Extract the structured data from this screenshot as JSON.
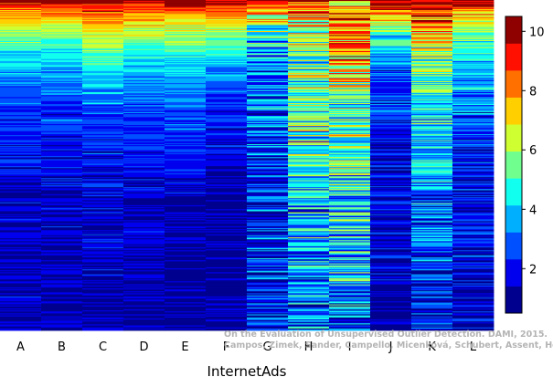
{
  "chart_data": {
    "type": "heatmap",
    "xlabel": "InternetAds",
    "ylabel": "",
    "title": "",
    "categories": [
      "A",
      "B",
      "C",
      "D",
      "E",
      "F",
      "G",
      "H",
      "I",
      "J",
      "K",
      "L"
    ],
    "rows": 330,
    "colorbar": {
      "min": 0.5,
      "max": 10.5,
      "ticks": [
        "2",
        "4",
        "6",
        "8",
        "10"
      ],
      "tick_values": [
        2,
        4,
        6,
        8,
        10
      ],
      "colors": [
        "#00008f",
        "#0000ef",
        "#0050ff",
        "#00b0ff",
        "#10ffef",
        "#70ff8f",
        "#cfff30",
        "#ffcf00",
        "#ff7000",
        "#ff1000",
        "#8f0000"
      ]
    },
    "column_profiles": [
      {
        "name": "A",
        "knots": [
          [
            0,
            10
          ],
          [
            0.03,
            8
          ],
          [
            0.08,
            6.5
          ],
          [
            0.16,
            4.5
          ],
          [
            0.3,
            2.5
          ],
          [
            0.6,
            1.5
          ],
          [
            1,
            1.1
          ]
        ],
        "noise": 1.0
      },
      {
        "name": "B",
        "knots": [
          [
            0,
            10
          ],
          [
            0.03,
            8
          ],
          [
            0.08,
            6.5
          ],
          [
            0.16,
            4.5
          ],
          [
            0.3,
            2.5
          ],
          [
            0.6,
            1.5
          ],
          [
            1,
            1.1
          ]
        ],
        "noise": 1.0
      },
      {
        "name": "C",
        "knots": [
          [
            0,
            10
          ],
          [
            0.04,
            8.5
          ],
          [
            0.1,
            6.5
          ],
          [
            0.2,
            4.5
          ],
          [
            0.35,
            2.5
          ],
          [
            0.6,
            1.6
          ],
          [
            1,
            1.1
          ]
        ],
        "noise": 1.1
      },
      {
        "name": "D",
        "knots": [
          [
            0,
            10
          ],
          [
            0.04,
            8
          ],
          [
            0.1,
            6
          ],
          [
            0.2,
            4
          ],
          [
            0.35,
            2.5
          ],
          [
            0.6,
            1.4
          ],
          [
            1,
            1.05
          ]
        ],
        "noise": 1.0
      },
      {
        "name": "E",
        "knots": [
          [
            0,
            10
          ],
          [
            0.04,
            8
          ],
          [
            0.1,
            6
          ],
          [
            0.2,
            4
          ],
          [
            0.4,
            2.5
          ],
          [
            0.6,
            1.3
          ],
          [
            1,
            1.05
          ]
        ],
        "noise": 1.0
      },
      {
        "name": "F",
        "knots": [
          [
            0,
            10
          ],
          [
            0.03,
            8.5
          ],
          [
            0.08,
            6.5
          ],
          [
            0.15,
            4.5
          ],
          [
            0.3,
            2.3
          ],
          [
            0.55,
            1.3
          ],
          [
            1,
            1.05
          ]
        ],
        "noise": 0.9
      },
      {
        "name": "G",
        "knots": [
          [
            0,
            9
          ],
          [
            0.05,
            6.5
          ],
          [
            0.15,
            3.5
          ],
          [
            0.35,
            2.5
          ],
          [
            0.6,
            2.3
          ],
          [
            1,
            1.8
          ]
        ],
        "noise": 2.4
      },
      {
        "name": "H",
        "knots": [
          [
            0,
            9
          ],
          [
            0.05,
            7
          ],
          [
            0.2,
            5.5
          ],
          [
            0.5,
            4.5
          ],
          [
            0.8,
            3.5
          ],
          [
            1,
            2.5
          ]
        ],
        "noise": 2.6
      },
      {
        "name": "I",
        "knots": [
          [
            0,
            8
          ],
          [
            0.1,
            8
          ],
          [
            0.3,
            6
          ],
          [
            0.6,
            4.5
          ],
          [
            1,
            2.5
          ]
        ],
        "noise": 2.8
      },
      {
        "name": "J",
        "knots": [
          [
            0,
            10
          ],
          [
            0.04,
            8
          ],
          [
            0.1,
            5
          ],
          [
            0.2,
            3
          ],
          [
            0.4,
            2
          ],
          [
            0.7,
            1.5
          ],
          [
            1,
            1.2
          ]
        ],
        "noise": 1.4
      },
      {
        "name": "K",
        "knots": [
          [
            0,
            10
          ],
          [
            0.05,
            8.5
          ],
          [
            0.15,
            6
          ],
          [
            0.35,
            4.5
          ],
          [
            0.6,
            3
          ],
          [
            1,
            1.8
          ]
        ],
        "noise": 2.2
      },
      {
        "name": "L",
        "knots": [
          [
            0,
            10
          ],
          [
            0.05,
            7
          ],
          [
            0.12,
            5
          ],
          [
            0.25,
            3.5
          ],
          [
            0.5,
            2
          ],
          [
            1,
            1.3
          ]
        ],
        "noise": 1.5
      }
    ],
    "grid": false,
    "legend": "right colorbar"
  },
  "credit": {
    "line1": "On the Evaluation of Unsupervised Outlier Detection. DAMI, 2015.",
    "line2": "Campos, Zimek, Sander, Campello, Micenková, Schubert, Assent, Houle"
  }
}
